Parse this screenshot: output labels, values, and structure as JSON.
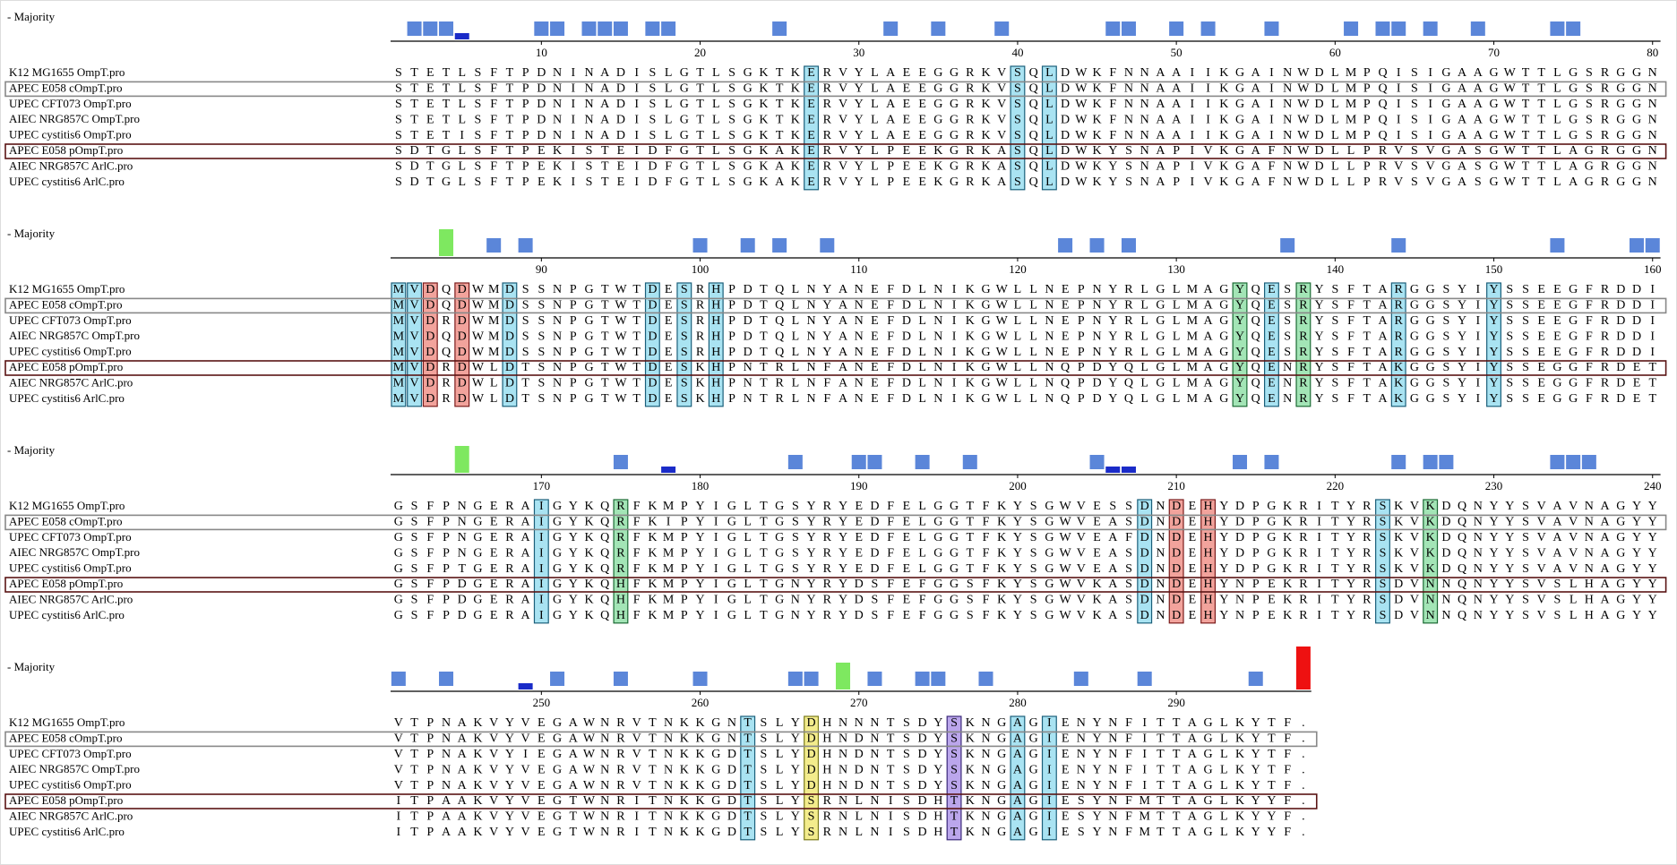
{
  "blocks": [
    {
      "majority_label": "- Majority",
      "ticks": [
        10,
        20,
        30,
        40,
        50,
        60,
        70,
        80
      ],
      "rows": [
        {
          "name": "K12 MG1655 OmpT.pro",
          "sequence": "STETLSFTPDNINADISLGTLSGKTKERVYLAEEGGRKVSQLDWKFNNAAIIKGAINWDLMPQISIGAAGWTTLGSRGGN"
        },
        {
          "name": "APEC E058 cOmpT.pro",
          "sequence": "STETLSFTPDNINADISLGTLSGKTKERVYLAEEGGRKVSQLDWKFNNAAIIKGAINWDLMPQISIGAAGWTTLGSRGGN"
        },
        {
          "name": "UPEC CFT073 OmpT.pro",
          "sequence": "STETLSFTPDNINADISLGTLSGKTKERVYLAEEGGRKVSQLDWKFNNAAIIKGAINWDLMPQISIGAAGWTTLGSRGGN"
        },
        {
          "name": "AIEC NRG857C OmpT.pro",
          "sequence": "STETLSFTPDNINADISLGTLSGKTKERVYLAEEGGRKVSQLDWKFNNAAIIKGAINWDLMPQISIGAAGWTTLGSRGGN"
        },
        {
          "name": "UPEC cystitis6 OmpT.pro",
          "sequence": "STETISFTPDNINADISLGTLSGKTKERVYLAEEGGRKVSQLDWKFNNAAIIKGAINWDLMPQISIGAAGWTTLGSRGGN"
        },
        {
          "name": "APEC E058 pOmpT.pro",
          "sequence": "SDTGLSFTPEKISTEIDFGTLSGKAKERVYLPEEKGRKASQLDWKYSNAPIVKGAFNWDLLPRVSVGASGWTTLAGRGGN"
        },
        {
          "name": "AIEC NRG857C ArlC.pro",
          "sequence": "SDTGLSFTPEKISTEIDFGTLSGKAKERVYLPEEKGRKASQLDWKYSNAPIVKGAFNWDLLPRVSVGASGWTTLAGRGGN"
        },
        {
          "name": "UPEC cystitis6 ArlC.pro",
          "sequence": "SDTGLSFTPEKISTEIDFGTLSGKAKERVYLPEEKGRKASQLDWKYSNAPIVKGAFNWDLLPRVSVGASGWTTLAGRGGN"
        }
      ]
    },
    {
      "majority_label": "- Majority",
      "ticks": [
        90,
        100,
        110,
        120,
        130,
        140,
        150,
        160
      ],
      "rows": [
        {
          "name": "K12 MG1655 OmpT.pro",
          "sequence": "MVDQDWMDSSNPGTWTDESRHPDTQLNYANEFDLNIKGWLLNEPNYRLGLMAGYQESRYSFTARGGSYIYSSEEGFRDDI"
        },
        {
          "name": "APEC E058 cOmpT.pro",
          "sequence": "MVDQDWMDSSNPGTWTDESRHPDTQLNYANEFDLNIKGWLLNEPNYRLGLMAGYQESRYSFTARGGSYIYSSEEGFRDDI"
        },
        {
          "name": "UPEC CFT073 OmpT.pro",
          "sequence": "MVDRDWMDSSNPGTWTDESRHPDTQLNYANEFDLNIKGWLLNEPNYRLGLMAGYQESRYSFTARGGSYIYSSEEGFRDDI"
        },
        {
          "name": "AIEC NRG857C OmpT.pro",
          "sequence": "MVDQDWMDSSNPGTWTDESRHPDTQLNYANEFDLNIKGWLLNEPNYRLGLMAGYQESRYSFTARGGSYIYSSEEGFRDDI"
        },
        {
          "name": "UPEC cystitis6 OmpT.pro",
          "sequence": "MVDQDWMDSSNPGTWTDESRHPDTQLNYANEFDLNIKGWLLNEPNYRLGLMAGYQESRYSFTARGGSYIYSSEEGFRDDI"
        },
        {
          "name": "APEC E058 pOmpT.pro",
          "sequence": "MVDRDWLDTSNPGTWTDESKHPNTRLNFANEFDLNIKGWLLNQPDYQLGLMAGYQENRYSFTAKGGSYIYSSEGGFRDET"
        },
        {
          "name": "AIEC NRG857C ArlC.pro",
          "sequence": "MVDRDWLDTSNPGTWTDESKHPNTRLNFANEFDLNIKGWLLNQPDYQLGLMAGYQENRYSFTAKGGSYIYSSEGGFRDET"
        },
        {
          "name": "UPEC cystitis6 ArlC.pro",
          "sequence": "MVDRDWLDTSNPGTWTDESKHPNTRLNFANEFDLNIKGWLLNQPDYQLGLMAGYQENRYSFTAKGGSYIYSSEGGFRDET"
        }
      ]
    },
    {
      "majority_label": "- Majority",
      "ticks": [
        170,
        180,
        190,
        200,
        210,
        220,
        230,
        240
      ],
      "rows": [
        {
          "name": "K12 MG1655 OmpT.pro",
          "sequence": "GSFPNGERAIGYKQRFKMPYIGLTGSYRYEDFELGGTFKYSGWVESSDNDEHYDPGKRITYRSKVKDQNYYSVAVNAGYY"
        },
        {
          "name": "APEC E058 cOmpT.pro",
          "sequence": "GSFPNGERAIGYKQRFKIPYIGLTGSYRYEDFELGGTFKYSGWVEASDNDEHYDPGKRITYRSKVKDQNYYSVAVNAGYY"
        },
        {
          "name": "UPEC CFT073 OmpT.pro",
          "sequence": "GSFPNGERAIGYKQRFKMPYIGLTGSYRYEDFELGGTFKYSGWVEAFDNDEHYDPGKRITYRSKVKDQNYYSVAVNAGYY"
        },
        {
          "name": "AIEC NRG857C OmpT.pro",
          "sequence": "GSFPNGERAIGYKQRFKMPYIGLTGSYRYEDFELGGTFKYSGWVEASDNDEHYDPGKRITYRSKVKDQNYYSVAVNAGYY"
        },
        {
          "name": "UPEC cystitis6 OmpT.pro",
          "sequence": "GSFPTGERAIGYKQRFKMPYIGLTGSYRYEDFELGGTFKYSGWVEASDNDEHYDPGKRITYRSKVKDQNYYSVAVNAGYY"
        },
        {
          "name": "APEC E058 pOmpT.pro",
          "sequence": "GSFPDGERAIGYKQHFKMPYIGLTGNYRYDSFEFGGSFKYSGWVKASDNDEHYNPEKRITYRSDVNNQNYYSVSLHAGYY"
        },
        {
          "name": "AIEC NRG857C ArlC.pro",
          "sequence": "GSFPDGERAIGYKQHFKMPYIGLTGNYRYDSFEFGGSFKYSGWVKASDNDEHYNPEKRITYRSDVNNQNYYSVSLHAGYY"
        },
        {
          "name": "UPEC cystitis6 ArlC.pro",
          "sequence": "GSFPDGERAIGYKQHFKMPYIGLTGNYRYDSFEFGGSFKYSGWVKASDNDEHYNPEKRITYRSDVNNQNYYSVSLHAGYY"
        }
      ]
    },
    {
      "majority_label": "- Majority",
      "ticks": [
        250,
        260,
        270,
        280,
        290
      ],
      "rows": [
        {
          "name": "K12 MG1655 OmpT.pro",
          "sequence": "VTPNAKVYVEGAWNRVTNKKGNTSLYDHNNNTSDYSKNGAGIENYNFITTAGLKYTF."
        },
        {
          "name": "APEC E058 cOmpT.pro",
          "sequence": "VTPNAKVYVEGAWNRVTNKKGNTSLYDHNDNTSDYSKNGAGIENYNFITTAGLKYTF."
        },
        {
          "name": "UPEC CFT073 OmpT.pro",
          "sequence": "VTPNAKVYIEGAWNRVTNKKGDTSLYDHNDNTSDYSKNGAGIENYNFITTAGLKYTF."
        },
        {
          "name": "AIEC NRG857C OmpT.pro",
          "sequence": "VTPNAKVYVEGAWNRVTNKKGDTSLYDHNDNTSDYSKNGAGIENYNFITTAGLKYTF."
        },
        {
          "name": "UPEC cystitis6 OmpT.pro",
          "sequence": "VTPNAKVYVEGAWNRVTNKKGDTSLYDHNDNTSDYSKNGAGIENYNFITTAGLKYTF."
        },
        {
          "name": "APEC E058 pOmpT.pro",
          "sequence": "ITPAAKVYVEGTWNRITNKKGDTSLYSRNLNISDHTKNGAGIESYNFMTTAGLKYYF."
        },
        {
          "name": "AIEC NRG857C ArlC.pro",
          "sequence": "ITPAAKVYVEGTWNRITNKKGDTSLYSRNLNISDHTKNGAGIESYNFMTTAGLKYYF."
        },
        {
          "name": "UPEC cystitis6 ArlC.pro",
          "sequence": "ITPAAKVYVEGTWNRITNKKGDTSLYSRNLNISDHTKNGAGIESYNFMTTAGLKYYF."
        }
      ]
    }
  ]
}
